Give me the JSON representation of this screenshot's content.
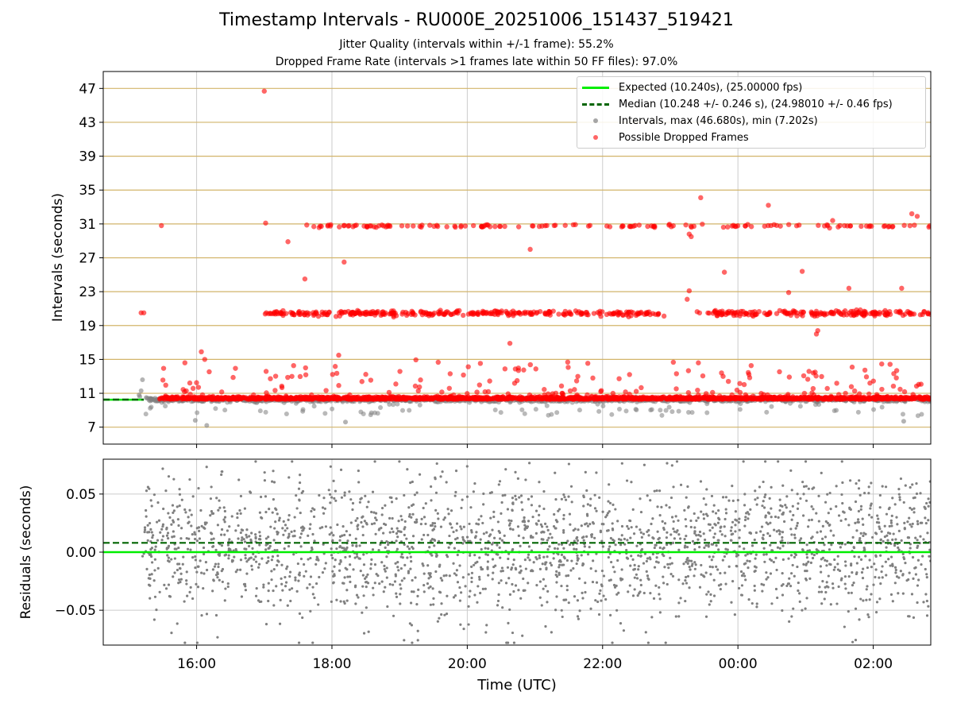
{
  "title": "Timestamp Intervals - RU000E_20251006_151437_519421",
  "subtitle_1": "Jitter Quality (intervals within +/-1 frame): 55.2%",
  "subtitle_2": "Dropped Frame Rate (intervals >1 frames late within 50 FF files): 97.0%",
  "top_ylabel": "Intervals (seconds)",
  "bottom_ylabel": "Residuals (seconds)",
  "xlabel": "Time (UTC)",
  "legend": {
    "expected": "Expected (10.240s), (25.00000 fps)",
    "median": "Median (10.248 +/- 0.246 s), (24.98010 +/- 0.46 fps)",
    "intervals": "Intervals, max (46.680s), min (7.202s)",
    "dropped": "Possible Dropped Frames"
  },
  "colors": {
    "expected": "#00ee00",
    "median": "#006400",
    "intervals": "#808080",
    "dropped": "#ff0000",
    "frame_grid": "#d2b46a",
    "grid": "#cccccc"
  },
  "chart_data": [
    {
      "type": "scatter",
      "panel": "intervals",
      "ylabel": "Intervals (seconds)",
      "ylim": [
        5.0,
        49.0
      ],
      "x_tick_labels": [
        "16:00",
        "18:00",
        "20:00",
        "22:00",
        "00:00",
        "02:00"
      ],
      "x_tick_hours": [
        16,
        18,
        20,
        22,
        24,
        26
      ],
      "x_range_hours": [
        14.62,
        26.85
      ],
      "y_ticks": [
        7,
        11,
        15,
        19,
        23,
        27,
        31,
        35,
        39,
        43,
        47
      ],
      "frame_multiple_lines": [
        10.24,
        20.48,
        30.72,
        40.96
      ],
      "expected_interval": 10.24,
      "median_interval": 10.248,
      "series": [
        {
          "name": "Intervals, max (46.680s), min (7.202s)",
          "summary": {
            "max": 46.68,
            "min": 7.202,
            "center": 10.24,
            "spread": 0.3
          }
        },
        {
          "name": "Possible Dropped Frames",
          "bands": [
            {
              "center": 20.48,
              "from_hour": 17.0,
              "to_hour": 26.85,
              "gaps": [
                [
                  22.85,
                  23.55
                ]
              ]
            },
            {
              "center": 30.72,
              "from_hour": 17.55,
              "to_hour": 26.85,
              "sparse": true
            }
          ]
        }
      ],
      "notable_points": [
        {
          "x": 15.18,
          "y": 20.5
        },
        {
          "x": 15.22,
          "y": 20.5
        },
        {
          "x": 15.48,
          "y": 30.8
        },
        {
          "x": 17.0,
          "y": 46.68
        },
        {
          "x": 17.02,
          "y": 31.1
        },
        {
          "x": 17.35,
          "y": 28.9
        },
        {
          "x": 17.6,
          "y": 24.5
        },
        {
          "x": 18.18,
          "y": 26.5
        },
        {
          "x": 20.93,
          "y": 28.0
        },
        {
          "x": 23.45,
          "y": 34.1
        },
        {
          "x": 24.45,
          "y": 33.2
        },
        {
          "x": 25.4,
          "y": 31.4
        },
        {
          "x": 26.57,
          "y": 32.2
        },
        {
          "x": 26.65,
          "y": 31.9
        },
        {
          "x": 24.75,
          "y": 22.9
        },
        {
          "x": 25.64,
          "y": 23.4
        },
        {
          "x": 26.42,
          "y": 23.4
        },
        {
          "x": 24.95,
          "y": 25.4
        },
        {
          "x": 23.8,
          "y": 25.3
        },
        {
          "x": 23.28,
          "y": 29.8
        },
        {
          "x": 23.31,
          "y": 29.5
        },
        {
          "x": 23.28,
          "y": 23.1
        },
        {
          "x": 23.25,
          "y": 22.1
        },
        {
          "x": 20.63,
          "y": 16.9
        },
        {
          "x": 16.07,
          "y": 15.9
        },
        {
          "x": 16.12,
          "y": 15.0
        },
        {
          "x": 18.1,
          "y": 15.5
        },
        {
          "x": 25.18,
          "y": 18.4
        },
        {
          "x": 25.16,
          "y": 18.0
        },
        {
          "x": 15.98,
          "y": 7.8
        },
        {
          "x": 16.15,
          "y": 7.2
        },
        {
          "x": 18.2,
          "y": 7.6
        },
        {
          "x": 26.45,
          "y": 7.7
        }
      ]
    },
    {
      "type": "scatter",
      "panel": "residuals",
      "ylabel": "Residuals (seconds)",
      "ylim": [
        -0.08,
        0.08
      ],
      "y_ticks": [
        -0.05,
        0.0,
        0.05
      ],
      "y_tick_labels": [
        "−0.05",
        "0.00",
        "0.05"
      ],
      "x_tick_labels": [
        "16:00",
        "18:00",
        "20:00",
        "22:00",
        "00:00",
        "02:00"
      ],
      "x_tick_hours": [
        16,
        18,
        20,
        22,
        24,
        26
      ],
      "x_range_hours": [
        14.62,
        26.85
      ],
      "expected_residual": 0.0,
      "median_residual": 0.008,
      "series": [
        {
          "summary": {
            "from_hour": 15.2,
            "to_hour": 26.85,
            "center": 0.004,
            "spread": 0.03
          }
        }
      ]
    }
  ]
}
